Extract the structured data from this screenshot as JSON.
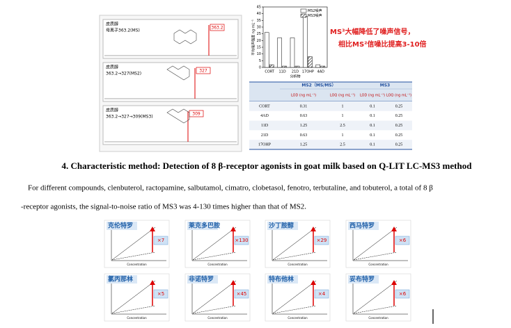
{
  "spectra": [
    {
      "label": "皮质醇",
      "sub": "母离子363.2(MS)",
      "peak": "363.2"
    },
    {
      "label": "皮质醇",
      "sub": "363.2→327(MS2)",
      "peak": "327"
    },
    {
      "label": "皮质醇",
      "sub": "363.2→327→309(MS3)",
      "peak": "309"
    }
  ],
  "bar_chart": {
    "type": "bar",
    "categories": [
      "CORT",
      "11D",
      "21D",
      "17OHP",
      "4AD"
    ],
    "series": [
      {
        "name": "MS2噪声",
        "color": "#ffffff",
        "values": [
          26,
          22,
          22,
          38,
          2
        ]
      },
      {
        "name": "MS3噪声",
        "color": "#555555",
        "values": [
          2,
          1,
          1,
          8,
          1
        ]
      }
    ],
    "ylim": [
      0,
      45
    ],
    "yticks": [
      0,
      5,
      10,
      15,
      20,
      25,
      30,
      35,
      40,
      45
    ],
    "ylabel": "平均噪声强度 ng·mL⁻¹",
    "xlabel": "分析物"
  },
  "callout": [
    "MS³大幅降低了噪声信号，",
    "相比MS²信噪比提高3-10倍"
  ],
  "table": {
    "groups": [
      "MS2（MS/MS）",
      "MS3"
    ],
    "columns": [
      "LOD (ng mL⁻¹)",
      "LOQ (ng mL⁻¹)",
      "LOD (ng mL⁻¹)",
      "LOQ (ng mL⁻¹)"
    ],
    "rows": [
      [
        "CORT",
        "0.31",
        "1",
        "0.1",
        "0.25"
      ],
      [
        "4AD",
        "0.63",
        "1",
        "0.1",
        "0.25"
      ],
      [
        "11D",
        "1.25",
        "2.5",
        "0.1",
        "0.25"
      ],
      [
        "21D",
        "0.63",
        "1",
        "0.1",
        "0.25"
      ],
      [
        "17OHP",
        "1.25",
        "2.5",
        "0.1",
        "0.25"
      ]
    ]
  },
  "heading": "4. Characteristic method: Detection of 8 β-receptor agonists in goat milk based on Q-LIT LC-MS3 method",
  "paragraph_lines": [
    "For different compounds, clenbuterol, ractopamine, salbutamol, cimatro, clobetasol, fenotro, terbutaline, and tobuterol, a total of 8  β",
    "-receptor agonists, the signal-to-noise ratio of MS3 was 4-130 times higher than that of MS2."
  ],
  "panels": [
    {
      "title": "克伦特罗",
      "gain": "×7"
    },
    {
      "title": "莱克多巴胺",
      "gain": "×130"
    },
    {
      "title": "沙丁胺醇",
      "gain": "×29"
    },
    {
      "title": "西马特罗",
      "gain": "×6"
    },
    {
      "title": "氯丙那林",
      "gain": "×5"
    },
    {
      "title": "非诺特罗",
      "gain": "×45"
    },
    {
      "title": "特布他林",
      "gain": "×4"
    },
    {
      "title": "妥布特罗",
      "gain": "×6"
    }
  ],
  "panel_xlabel": "Concentration"
}
